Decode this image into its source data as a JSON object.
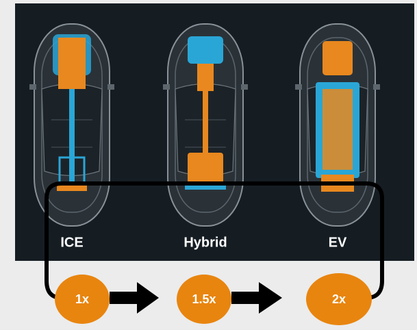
{
  "cars": [
    {
      "label": "ICE",
      "multiplier": "1x"
    },
    {
      "label": "Hybrid",
      "multiplier": "1.5x"
    },
    {
      "label": "EV",
      "multiplier": "2x"
    }
  ]
}
